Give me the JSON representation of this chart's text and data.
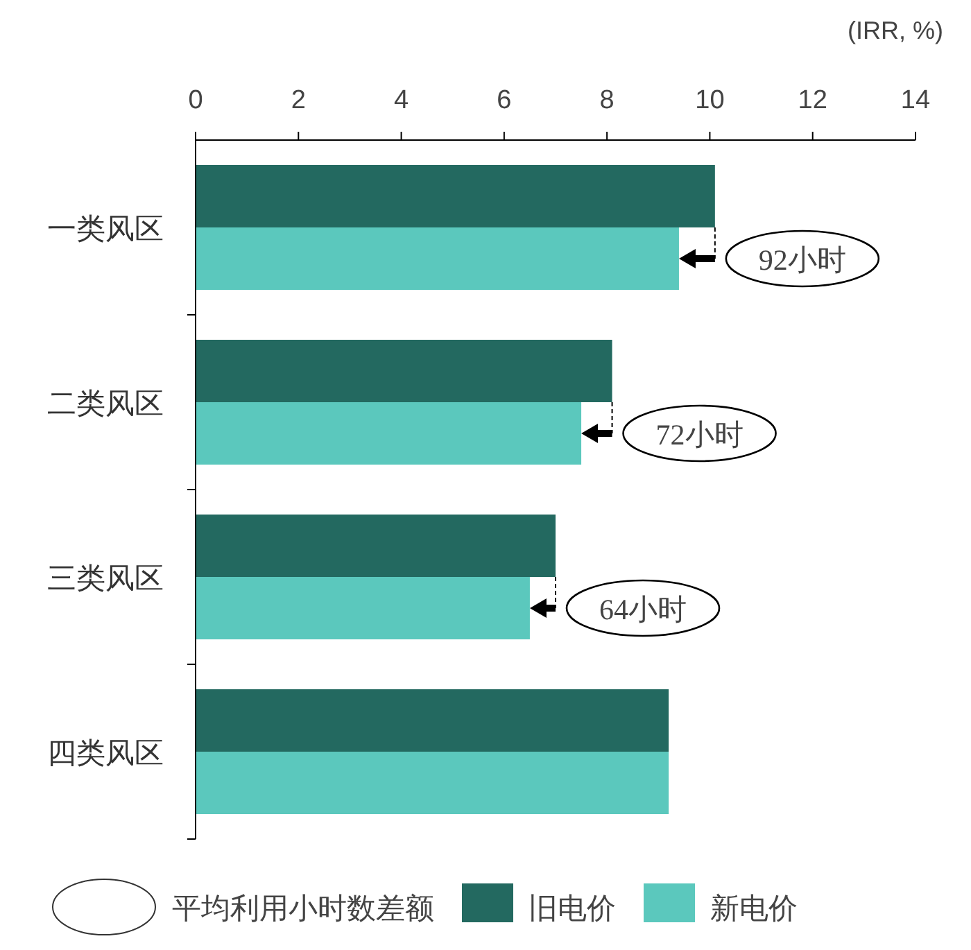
{
  "chart_data": {
    "type": "bar",
    "orientation": "horizontal",
    "xlabel": "(IRR, %)",
    "categories": [
      "一类风区",
      "二类风区",
      "三类风区",
      "四类风区"
    ],
    "series": [
      {
        "name": "旧电价",
        "color": "#236960",
        "values": [
          10.1,
          8.1,
          7.0,
          9.2
        ]
      },
      {
        "name": "新电价",
        "color": "#5bc8bd",
        "values": [
          9.4,
          7.5,
          6.5,
          9.2
        ]
      }
    ],
    "xlim": [
      0,
      14
    ],
    "xticks": [
      0,
      2,
      4,
      6,
      8,
      10,
      12,
      14
    ],
    "annotations": [
      {
        "text": "92小时",
        "x": 10.1,
        "y": "一类风区"
      },
      {
        "text": "72小时",
        "x": 8.1,
        "y": "二类风区"
      },
      {
        "text": "64小时",
        "x": 7.0,
        "y": "三类风区"
      },
      "平均利用小时数差额"
    ],
    "legend": "bottom",
    "grid": false
  }
}
